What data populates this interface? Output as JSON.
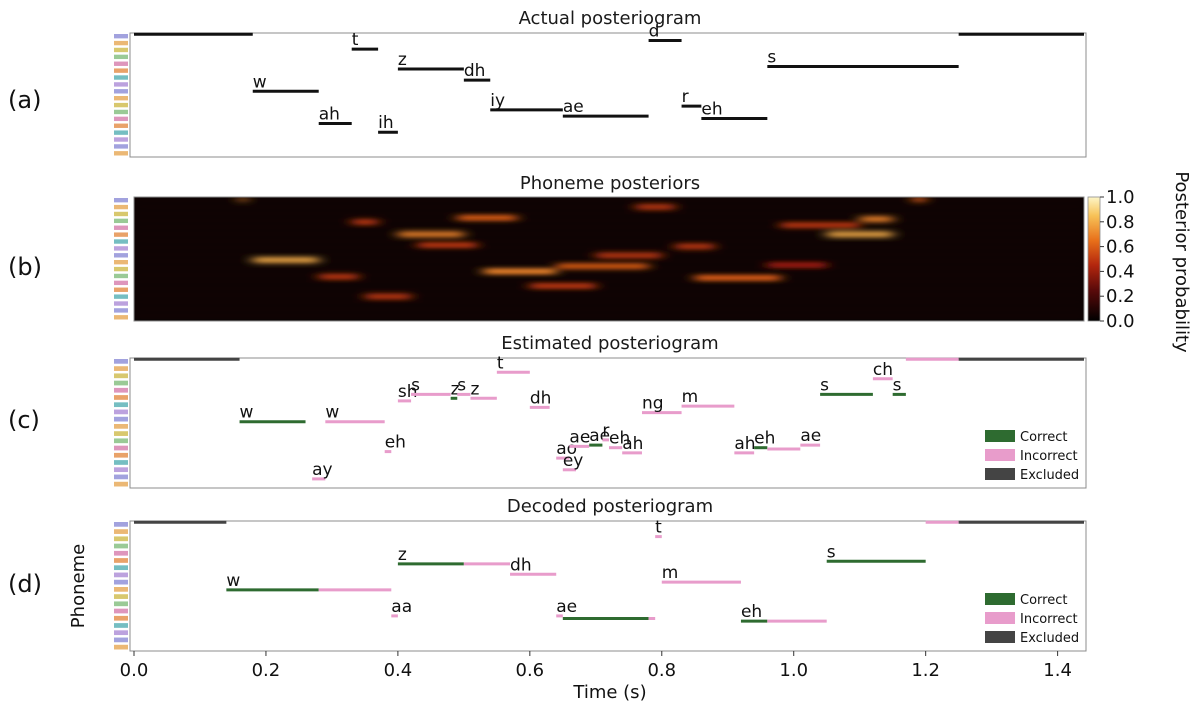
{
  "chart_data": {
    "type": "heatmap",
    "x_axis": {
      "label": "Time (s)",
      "range": [
        0.0,
        1.44
      ],
      "ticks": [
        "0.0",
        "0.2",
        "0.4",
        "0.6",
        "0.8",
        "1.0",
        "1.2",
        "1.4"
      ]
    },
    "y_axis_label": "Phoneme",
    "panels": [
      {
        "label": "(a)",
        "title": "Actual posteriogram",
        "segments": [
          {
            "ph": "w",
            "t0": 0.18,
            "t1": 0.28,
            "row": 0.47,
            "cls": "actual"
          },
          {
            "ph": "ah",
            "t0": 0.28,
            "t1": 0.33,
            "row": 0.73,
            "cls": "actual"
          },
          {
            "ph": "t",
            "t0": 0.33,
            "t1": 0.37,
            "row": 0.13,
            "cls": "actual"
          },
          {
            "ph": "ih",
            "t0": 0.37,
            "t1": 0.4,
            "row": 0.8,
            "cls": "actual"
          },
          {
            "ph": "z",
            "t0": 0.4,
            "t1": 0.5,
            "row": 0.29,
            "cls": "actual"
          },
          {
            "ph": "dh",
            "t0": 0.5,
            "t1": 0.54,
            "row": 0.38,
            "cls": "actual"
          },
          {
            "ph": "iy",
            "t0": 0.54,
            "t1": 0.65,
            "row": 0.62,
            "cls": "actual"
          },
          {
            "ph": "ae",
            "t0": 0.65,
            "t1": 0.78,
            "row": 0.67,
            "cls": "actual"
          },
          {
            "ph": "d",
            "t0": 0.78,
            "t1": 0.83,
            "row": 0.06,
            "cls": "actual"
          },
          {
            "ph": "r",
            "t0": 0.83,
            "t1": 0.86,
            "row": 0.59,
            "cls": "actual"
          },
          {
            "ph": "eh",
            "t0": 0.86,
            "t1": 0.96,
            "row": 0.69,
            "cls": "actual"
          },
          {
            "ph": "s",
            "t0": 0.96,
            "t1": 1.25,
            "row": 0.27,
            "cls": "actual"
          },
          {
            "ph": "",
            "t0": 0.0,
            "t1": 0.18,
            "row": 0.01,
            "cls": "actual"
          },
          {
            "ph": "",
            "t0": 1.25,
            "t1": 1.44,
            "row": 0.01,
            "cls": "actual"
          }
        ]
      },
      {
        "label": "(b)",
        "title": "Phoneme posteriors",
        "colorbar": {
          "label": "Posterior probability",
          "ticks": [
            "1.0",
            "0.8",
            "0.6",
            "0.4",
            "0.2",
            "0.0"
          ],
          "range": [
            0.0,
            1.0
          ]
        },
        "blobs": [
          {
            "t0": 0.16,
            "t1": 0.17,
            "row": 0.02,
            "v": 0.7
          },
          {
            "t0": 0.18,
            "t1": 0.28,
            "row": 0.51,
            "v": 0.8
          },
          {
            "t0": 0.28,
            "t1": 0.34,
            "row": 0.64,
            "v": 0.5
          },
          {
            "t0": 0.33,
            "t1": 0.37,
            "row": 0.2,
            "v": 0.5
          },
          {
            "t0": 0.35,
            "t1": 0.42,
            "row": 0.8,
            "v": 0.5
          },
          {
            "t0": 0.4,
            "t1": 0.5,
            "row": 0.3,
            "v": 0.7
          },
          {
            "t0": 0.43,
            "t1": 0.52,
            "row": 0.39,
            "v": 0.5
          },
          {
            "t0": 0.49,
            "t1": 0.58,
            "row": 0.17,
            "v": 0.6
          },
          {
            "t0": 0.53,
            "t1": 0.64,
            "row": 0.6,
            "v": 0.7
          },
          {
            "t0": 0.6,
            "t1": 0.7,
            "row": 0.72,
            "v": 0.5
          },
          {
            "t0": 0.64,
            "t1": 0.78,
            "row": 0.56,
            "v": 0.6
          },
          {
            "t0": 0.7,
            "t1": 0.8,
            "row": 0.47,
            "v": 0.5
          },
          {
            "t0": 0.76,
            "t1": 0.82,
            "row": 0.08,
            "v": 0.5
          },
          {
            "t0": 0.82,
            "t1": 0.88,
            "row": 0.4,
            "v": 0.5
          },
          {
            "t0": 0.85,
            "t1": 0.98,
            "row": 0.65,
            "v": 0.6
          },
          {
            "t0": 0.96,
            "t1": 1.05,
            "row": 0.55,
            "v": 0.4
          },
          {
            "t0": 0.98,
            "t1": 1.1,
            "row": 0.23,
            "v": 0.5
          },
          {
            "t0": 1.05,
            "t1": 1.15,
            "row": 0.3,
            "v": 0.8
          },
          {
            "t0": 1.1,
            "t1": 1.15,
            "row": 0.18,
            "v": 0.7
          },
          {
            "t0": 1.18,
            "t1": 1.2,
            "row": 0.02,
            "v": 0.6
          }
        ]
      },
      {
        "label": "(c)",
        "title": "Estimated posteriogram",
        "segments": [
          {
            "ph": "",
            "t0": 0.0,
            "t1": 0.16,
            "row": 0.01,
            "cls": "excluded"
          },
          {
            "ph": "w",
            "t0": 0.16,
            "t1": 0.26,
            "row": 0.49,
            "cls": "correct"
          },
          {
            "ph": "ay",
            "t0": 0.27,
            "t1": 0.29,
            "row": 0.93,
            "cls": "incorrect"
          },
          {
            "ph": "w",
            "t0": 0.29,
            "t1": 0.38,
            "row": 0.49,
            "cls": "incorrect"
          },
          {
            "ph": "eh",
            "t0": 0.38,
            "t1": 0.39,
            "row": 0.72,
            "cls": "incorrect"
          },
          {
            "ph": "sh",
            "t0": 0.4,
            "t1": 0.42,
            "row": 0.33,
            "cls": "incorrect"
          },
          {
            "ph": "s",
            "t0": 0.42,
            "t1": 0.48,
            "row": 0.28,
            "cls": "incorrect"
          },
          {
            "ph": "z",
            "t0": 0.48,
            "t1": 0.49,
            "row": 0.31,
            "cls": "correct"
          },
          {
            "ph": "s",
            "t0": 0.49,
            "t1": 0.51,
            "row": 0.28,
            "cls": "incorrect"
          },
          {
            "ph": "z",
            "t0": 0.51,
            "t1": 0.55,
            "row": 0.31,
            "cls": "incorrect"
          },
          {
            "ph": "t",
            "t0": 0.55,
            "t1": 0.6,
            "row": 0.11,
            "cls": "incorrect"
          },
          {
            "ph": "dh",
            "t0": 0.6,
            "t1": 0.63,
            "row": 0.38,
            "cls": "incorrect"
          },
          {
            "ph": "ao",
            "t0": 0.64,
            "t1": 0.66,
            "row": 0.77,
            "cls": "incorrect"
          },
          {
            "ph": "ey",
            "t0": 0.65,
            "t1": 0.67,
            "row": 0.86,
            "cls": "incorrect"
          },
          {
            "ph": "ae",
            "t0": 0.66,
            "t1": 0.69,
            "row": 0.68,
            "cls": "incorrect"
          },
          {
            "ph": "ae",
            "t0": 0.69,
            "t1": 0.71,
            "row": 0.67,
            "cls": "correct"
          },
          {
            "ph": "r",
            "t0": 0.71,
            "t1": 0.72,
            "row": 0.63,
            "cls": "incorrect"
          },
          {
            "ph": "eh",
            "t0": 0.72,
            "t1": 0.74,
            "row": 0.69,
            "cls": "incorrect"
          },
          {
            "ph": "ah",
            "t0": 0.74,
            "t1": 0.77,
            "row": 0.73,
            "cls": "incorrect"
          },
          {
            "ph": "ng",
            "t0": 0.77,
            "t1": 0.83,
            "row": 0.42,
            "cls": "incorrect"
          },
          {
            "ph": "m",
            "t0": 0.83,
            "t1": 0.91,
            "row": 0.37,
            "cls": "incorrect"
          },
          {
            "ph": "ah",
            "t0": 0.91,
            "t1": 0.94,
            "row": 0.73,
            "cls": "incorrect"
          },
          {
            "ph": "eh",
            "t0": 0.94,
            "t1": 0.96,
            "row": 0.69,
            "cls": "correct"
          },
          {
            "ph": "",
            "t0": 0.96,
            "t1": 1.01,
            "row": 0.7,
            "cls": "incorrect"
          },
          {
            "ph": "ae",
            "t0": 1.01,
            "t1": 1.04,
            "row": 0.67,
            "cls": "incorrect"
          },
          {
            "ph": "s",
            "t0": 1.04,
            "t1": 1.12,
            "row": 0.28,
            "cls": "correct"
          },
          {
            "ph": "ch",
            "t0": 1.12,
            "t1": 1.15,
            "row": 0.16,
            "cls": "incorrect"
          },
          {
            "ph": "s",
            "t0": 1.15,
            "t1": 1.17,
            "row": 0.28,
            "cls": "correct"
          },
          {
            "ph": "",
            "t0": 1.17,
            "t1": 1.25,
            "row": 0.01,
            "cls": "incorrect"
          },
          {
            "ph": "",
            "t0": 1.25,
            "t1": 1.44,
            "row": 0.01,
            "cls": "excluded"
          }
        ]
      },
      {
        "label": "(d)",
        "title": "Decoded posteriogram",
        "segments": [
          {
            "ph": "",
            "t0": 0.0,
            "t1": 0.14,
            "row": 0.01,
            "cls": "excluded"
          },
          {
            "ph": "w",
            "t0": 0.14,
            "t1": 0.28,
            "row": 0.53,
            "cls": "correct"
          },
          {
            "ph": "",
            "t0": 0.28,
            "t1": 0.39,
            "row": 0.53,
            "cls": "incorrect"
          },
          {
            "ph": "aa",
            "t0": 0.39,
            "t1": 0.4,
            "row": 0.73,
            "cls": "incorrect"
          },
          {
            "ph": "z",
            "t0": 0.4,
            "t1": 0.5,
            "row": 0.33,
            "cls": "correct"
          },
          {
            "ph": "",
            "t0": 0.5,
            "t1": 0.57,
            "row": 0.33,
            "cls": "incorrect"
          },
          {
            "ph": "dh",
            "t0": 0.57,
            "t1": 0.64,
            "row": 0.41,
            "cls": "incorrect"
          },
          {
            "ph": "ae",
            "t0": 0.64,
            "t1": 0.65,
            "row": 0.73,
            "cls": "incorrect"
          },
          {
            "ph": "",
            "t0": 0.65,
            "t1": 0.78,
            "row": 0.75,
            "cls": "correct"
          },
          {
            "ph": "",
            "t0": 0.78,
            "t1": 0.79,
            "row": 0.75,
            "cls": "incorrect"
          },
          {
            "ph": "t",
            "t0": 0.79,
            "t1": 0.8,
            "row": 0.12,
            "cls": "incorrect"
          },
          {
            "ph": "m",
            "t0": 0.8,
            "t1": 0.92,
            "row": 0.47,
            "cls": "incorrect"
          },
          {
            "ph": "eh",
            "t0": 0.92,
            "t1": 0.96,
            "row": 0.77,
            "cls": "correct"
          },
          {
            "ph": "",
            "t0": 0.96,
            "t1": 1.05,
            "row": 0.77,
            "cls": "incorrect"
          },
          {
            "ph": "s",
            "t0": 1.05,
            "t1": 1.2,
            "row": 0.31,
            "cls": "correct"
          },
          {
            "ph": "",
            "t0": 1.2,
            "t1": 1.25,
            "row": 0.01,
            "cls": "incorrect"
          },
          {
            "ph": "",
            "t0": 1.25,
            "t1": 1.44,
            "row": 0.01,
            "cls": "excluded"
          }
        ]
      }
    ],
    "legend": [
      "Correct",
      "Incorrect",
      "Excluded"
    ]
  },
  "colors": {
    "correct": "#2e6b30",
    "incorrect": "#e89ccb",
    "excluded": "#444444",
    "actual": "#111111",
    "frame": "#8c8c8c"
  }
}
